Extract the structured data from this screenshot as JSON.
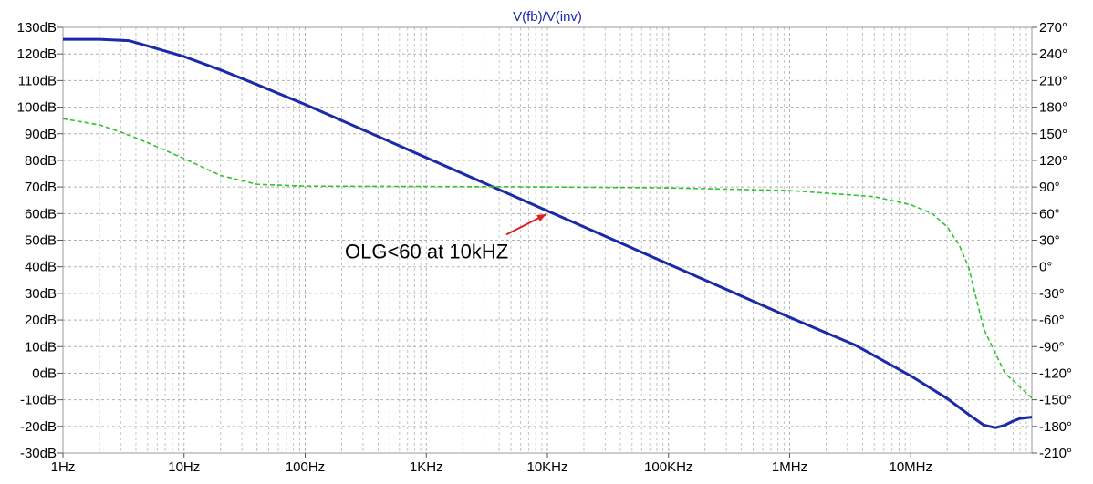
{
  "chart_data": {
    "type": "line",
    "title": "V(fb)/V(inv)",
    "x_scale": "log",
    "x_range_hz": [
      1,
      100000000
    ],
    "x_tick_labels": [
      "1Hz",
      "10Hz",
      "100Hz",
      "1KHz",
      "10KHz",
      "100KHz",
      "1MHz",
      "10MHz"
    ],
    "y_left_range_db": [
      -30,
      130
    ],
    "y_left_tick_labels": [
      "130dB",
      "120dB",
      "110dB",
      "100dB",
      "90dB",
      "80dB",
      "70dB",
      "60dB",
      "50dB",
      "40dB",
      "30dB",
      "20dB",
      "10dB",
      "0dB",
      "-10dB",
      "-20dB",
      "-30dB"
    ],
    "y_right_range_deg": [
      -210,
      270
    ],
    "y_right_tick_labels": [
      "270°",
      "240°",
      "210°",
      "180°",
      "150°",
      "120°",
      "90°",
      "60°",
      "30°",
      "0°",
      "-30°",
      "-60°",
      "-90°",
      "-120°",
      "-150°",
      "-180°",
      "-210°"
    ],
    "grid": true,
    "series": [
      {
        "axis": "left",
        "style": "solid",
        "color": "#1a2aa8",
        "x": [
          1,
          2,
          3.5,
          6,
          10,
          20,
          40,
          100,
          300,
          1000,
          3000,
          10000,
          30000,
          100000,
          300000,
          1000000,
          3500000,
          10000000,
          20000000,
          30000000,
          40000000,
          45000000,
          50000000,
          60000000,
          70000000,
          80000000,
          100000000
        ],
        "values": [
          125.5,
          125.5,
          125,
          122,
          119,
          114,
          108.5,
          101,
          91.5,
          81,
          71.5,
          61,
          51.5,
          41,
          31.5,
          21,
          10.5,
          -1,
          -9.5,
          -15.5,
          -19.5,
          -20,
          -20.5,
          -19.5,
          -18,
          -17,
          -16.5
        ]
      },
      {
        "axis": "right",
        "style": "dashed",
        "color": "#2fc42f",
        "x": [
          1,
          2,
          3,
          5,
          10,
          20,
          40,
          100,
          1000,
          10000,
          100000,
          1000000,
          5000000,
          10000000,
          15000000,
          20000000,
          25000000,
          30000000,
          40000000,
          60000000,
          100000000
        ],
        "values": [
          167,
          160,
          152,
          140,
          122,
          103,
          93,
          91,
          90.5,
          90,
          89,
          86,
          79,
          70,
          60,
          45,
          25,
          0,
          -70,
          -120,
          -148
        ]
      }
    ],
    "annotations": [
      {
        "text": "OLG<60 at 10kHZ",
        "arrow_to_x": 10000,
        "arrow_to_y_db": 61,
        "arrow_color": "#e02020"
      }
    ]
  }
}
